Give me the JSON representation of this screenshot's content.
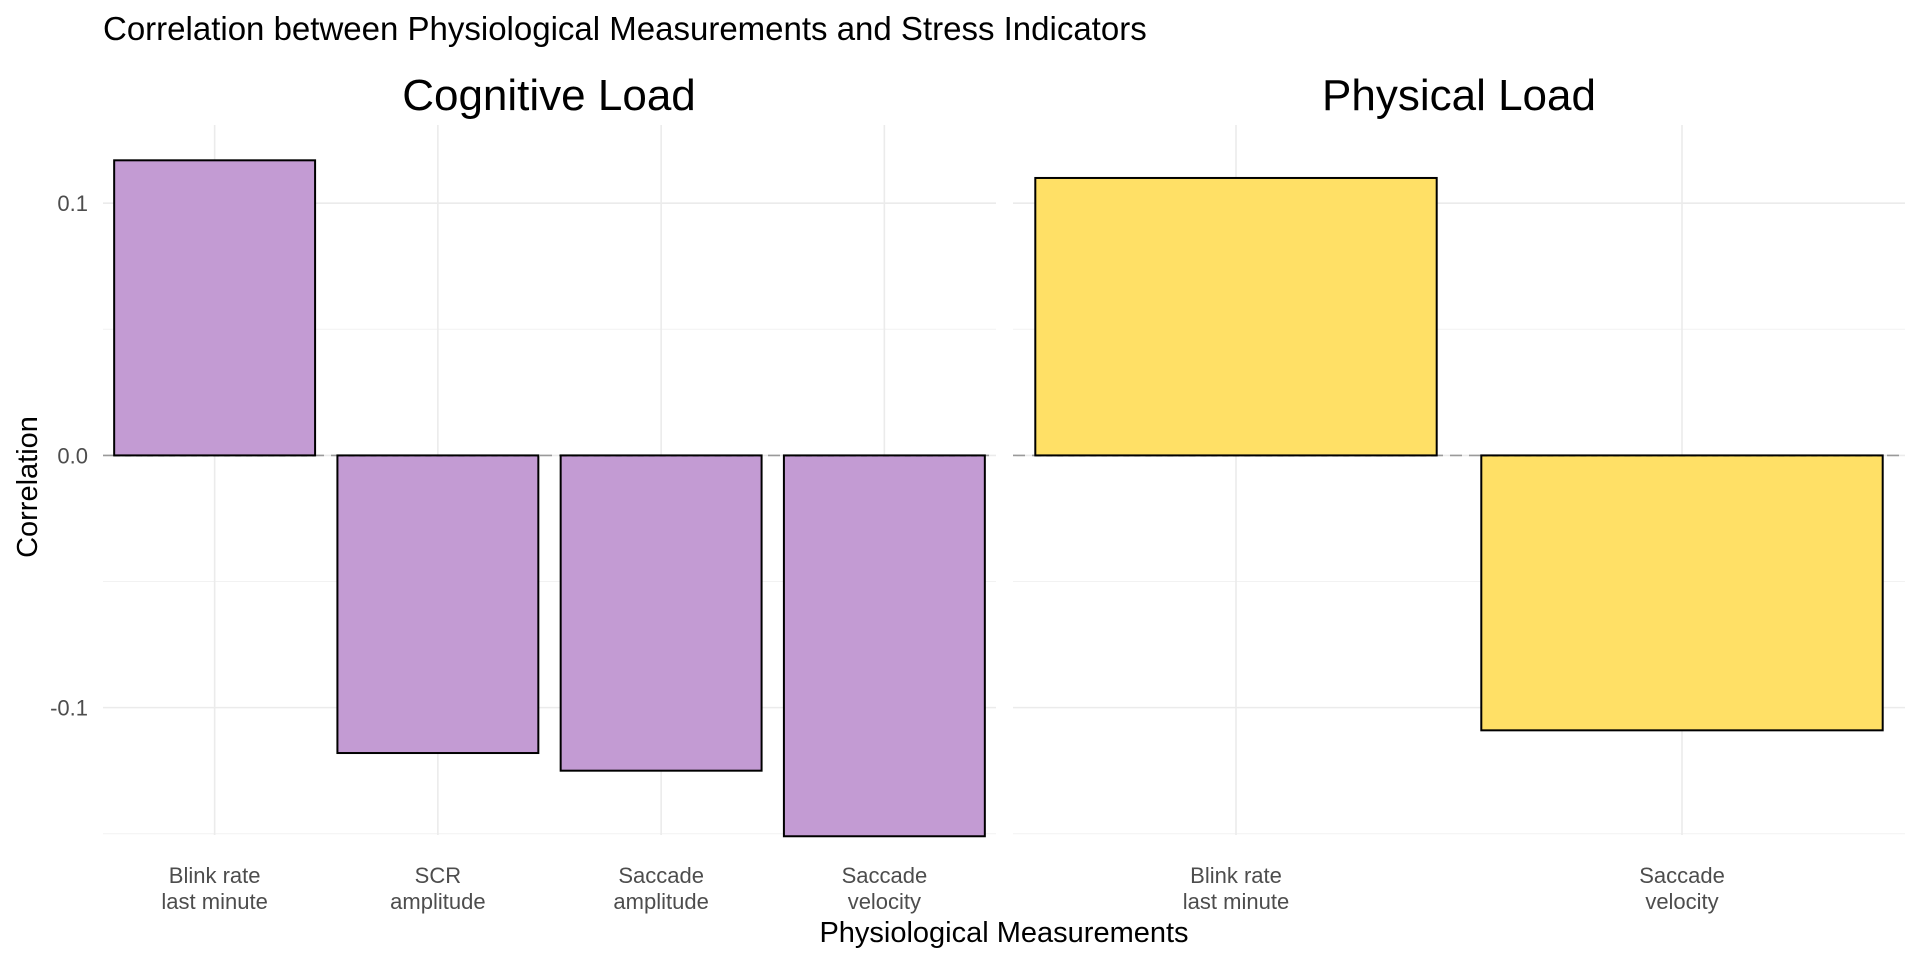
{
  "chart_data": {
    "type": "bar",
    "title": "Correlation between Physiological Measurements and Stress Indicators",
    "xlabel": "Physiological Measurements",
    "ylabel": "Correlation",
    "ylim": [
      -0.1505,
      0.131
    ],
    "yticks": [
      {
        "value": 0.1,
        "label": "0.1"
      },
      {
        "value": 0.0,
        "label": "0.0"
      },
      {
        "value": -0.1,
        "label": "-0.1"
      }
    ],
    "reference_line": 0,
    "grid": true,
    "panels": [
      {
        "name": "Cognitive Load",
        "color": "#c39bd3",
        "categories": [
          [
            "Blink rate",
            "last minute"
          ],
          [
            "SCR",
            "amplitude"
          ],
          [
            "Saccade",
            "amplitude"
          ],
          [
            "Saccade",
            "velocity"
          ]
        ],
        "values": [
          0.117,
          -0.118,
          -0.125,
          -0.151
        ]
      },
      {
        "name": "Physical Load",
        "color": "#ffe066",
        "categories": [
          [
            "Blink rate",
            "last minute"
          ],
          [
            "Saccade",
            "velocity"
          ]
        ],
        "values": [
          0.11,
          -0.109
        ]
      }
    ]
  }
}
